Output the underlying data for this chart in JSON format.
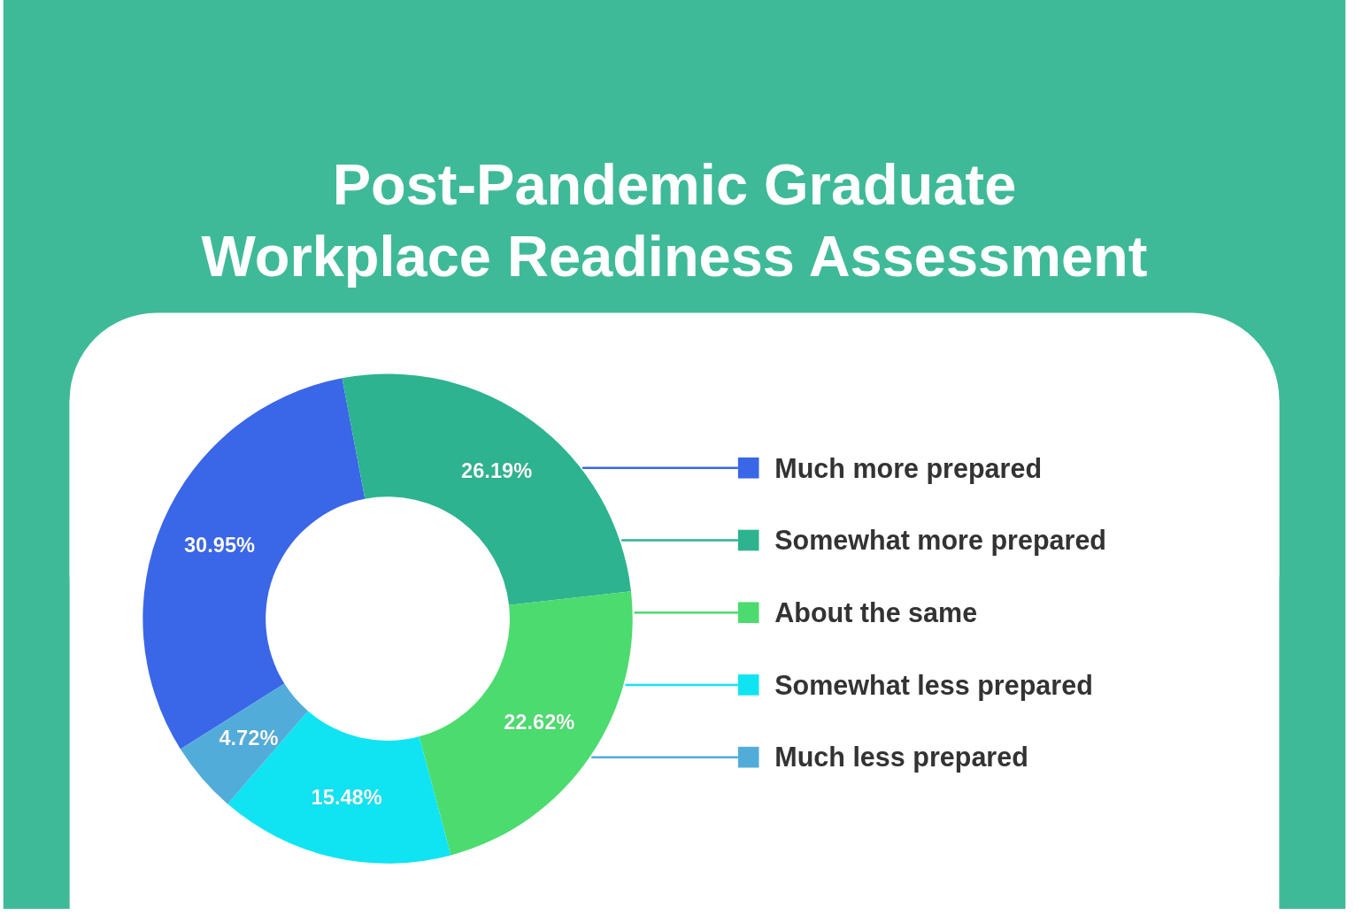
{
  "chart_data": {
    "type": "donut",
    "title": "Post-Pandemic Graduate\nWorkplace Readiness Assessment",
    "categories": [
      "Much more prepared",
      "Somewhat more prepared",
      "About the same",
      "Somewhat less prepared",
      "Much less prepared"
    ],
    "values": [
      30.95,
      26.19,
      22.62,
      15.48,
      4.72
    ],
    "colors": [
      "#3a66e8",
      "#2db38f",
      "#4cdb6e",
      "#10e4f2",
      "#52acd9"
    ],
    "value_labels": [
      "30.95%",
      "26.19%",
      "22.62%",
      "15.48%",
      "4.72%"
    ],
    "legend": "right"
  }
}
